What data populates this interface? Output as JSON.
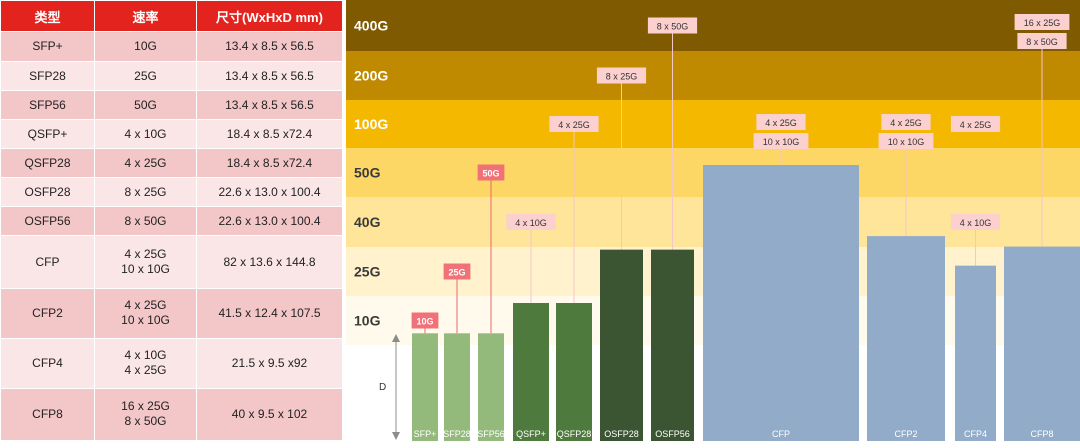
{
  "colors": {
    "table_header": "#e3231d",
    "row_dark": "#f3c6c8",
    "row_light": "#fbe6e7",
    "bar_light_green": "#93b97b",
    "bar_mid_green": "#4f7a3e",
    "bar_dark_green": "#3b5533",
    "bar_blue": "#91abc9",
    "label_red": "#f07177",
    "label_pink": "#fbd0cf",
    "leader_line": "#f3c4c4"
  },
  "table": {
    "headers": [
      "类型",
      "速率",
      "尺寸(WxHxD mm)"
    ],
    "rows": [
      {
        "type": "SFP+",
        "rate": "10G",
        "size": "13.4 x 8.5 x 56.5"
      },
      {
        "type": "SFP28",
        "rate": "25G",
        "size": "13.4 x 8.5 x 56.5"
      },
      {
        "type": "SFP56",
        "rate": "50G",
        "size": "13.4 x 8.5 x 56.5"
      },
      {
        "type": "QSFP+",
        "rate": "4 x 10G",
        "size": "18.4 x 8.5 x72.4"
      },
      {
        "type": "QSFP28",
        "rate": "4 x 25G",
        "size": "18.4 x 8.5 x72.4"
      },
      {
        "type": "OSFP28",
        "rate": "8 x 25G",
        "size": "22.6 x 13.0 x 100.4"
      },
      {
        "type": "OSFP56",
        "rate": "8 x 50G",
        "size": "22.6 x 13.0 x 100.4"
      },
      {
        "type": "CFP",
        "rate": "4 x 25G\n10 x 10G",
        "size": "82 x 13.6 x 144.8"
      },
      {
        "type": "CFP2",
        "rate": "4 x 25G\n10 x 10G",
        "size": "41.5 x 12.4 x 107.5"
      },
      {
        "type": "CFP4",
        "rate": "4 x 10G\n4 x 25G",
        "size": "21.5 x 9.5 x92"
      },
      {
        "type": "CFP8",
        "rate": "16 x 25G\n8 x 50G",
        "size": "40 x 9.5 x 102"
      }
    ]
  },
  "chart_data": {
    "type": "bar",
    "title": "",
    "axis_label": "D",
    "bands": [
      {
        "label": "400G",
        "color": "#7f5a00"
      },
      {
        "label": "200G",
        "color": "#bf8a00"
      },
      {
        "label": "100G",
        "color": "#f5b800"
      },
      {
        "label": "50G",
        "color": "#fdd766"
      },
      {
        "label": "40G",
        "color": "#fee599"
      },
      {
        "label": "25G",
        "color": "#fff2cc"
      },
      {
        "label": "10G",
        "color": "#fffaeb"
      }
    ],
    "bars": [
      {
        "name": "SFP+",
        "depth_mm": 56.5,
        "color": "#93b97b",
        "labels": [
          {
            "text": "10G",
            "style": "red",
            "band": "10G"
          }
        ]
      },
      {
        "name": "SFP28",
        "depth_mm": 56.5,
        "color": "#93b97b",
        "labels": [
          {
            "text": "25G",
            "style": "red",
            "band": "25G"
          }
        ]
      },
      {
        "name": "SFP56",
        "depth_mm": 56.5,
        "color": "#93b97b",
        "labels": [
          {
            "text": "50G",
            "style": "red",
            "band": "50G"
          }
        ]
      },
      {
        "name": "QSFP+",
        "depth_mm": 72.4,
        "color": "#4f7a3e",
        "labels": [
          {
            "text": "4 x 10G",
            "style": "pink",
            "band": "40G"
          }
        ]
      },
      {
        "name": "QSFP28",
        "depth_mm": 72.4,
        "color": "#4f7a3e",
        "labels": [
          {
            "text": "4 x 25G",
            "style": "pink",
            "band": "100G"
          }
        ]
      },
      {
        "name": "OSFP28",
        "depth_mm": 100.4,
        "color": "#3b5533",
        "labels": [
          {
            "text": "8 x 25G",
            "style": "pink",
            "band": "200G"
          }
        ]
      },
      {
        "name": "OSFP56",
        "depth_mm": 100.4,
        "color": "#3b5533",
        "labels": [
          {
            "text": "8 x 50G",
            "style": "pink",
            "band": "400G"
          }
        ]
      },
      {
        "name": "CFP",
        "depth_mm": 144.8,
        "color": "#91abc9",
        "labels": [
          {
            "text": "4 x 25G",
            "style": "pink",
            "band": "100G"
          },
          {
            "text": "10 x 10G",
            "style": "pink",
            "band": "100G"
          }
        ]
      },
      {
        "name": "CFP2",
        "depth_mm": 107.5,
        "color": "#91abc9",
        "labels": [
          {
            "text": "4 x 25G",
            "style": "pink",
            "band": "100G"
          },
          {
            "text": "10 x 10G",
            "style": "pink",
            "band": "100G"
          }
        ]
      },
      {
        "name": "CFP4",
        "depth_mm": 92,
        "color": "#91abc9",
        "labels": [
          {
            "text": "4 x 25G",
            "style": "pink",
            "band": "100G"
          },
          {
            "text": "4 x 10G",
            "style": "pink",
            "band": "40G"
          }
        ]
      },
      {
        "name": "CFP8",
        "depth_mm": 102,
        "color": "#91abc9",
        "labels": [
          {
            "text": "16 x 25G",
            "style": "pink",
            "band": "400G"
          },
          {
            "text": "8 x 50G",
            "style": "pink",
            "band": "400G"
          }
        ]
      }
    ]
  }
}
